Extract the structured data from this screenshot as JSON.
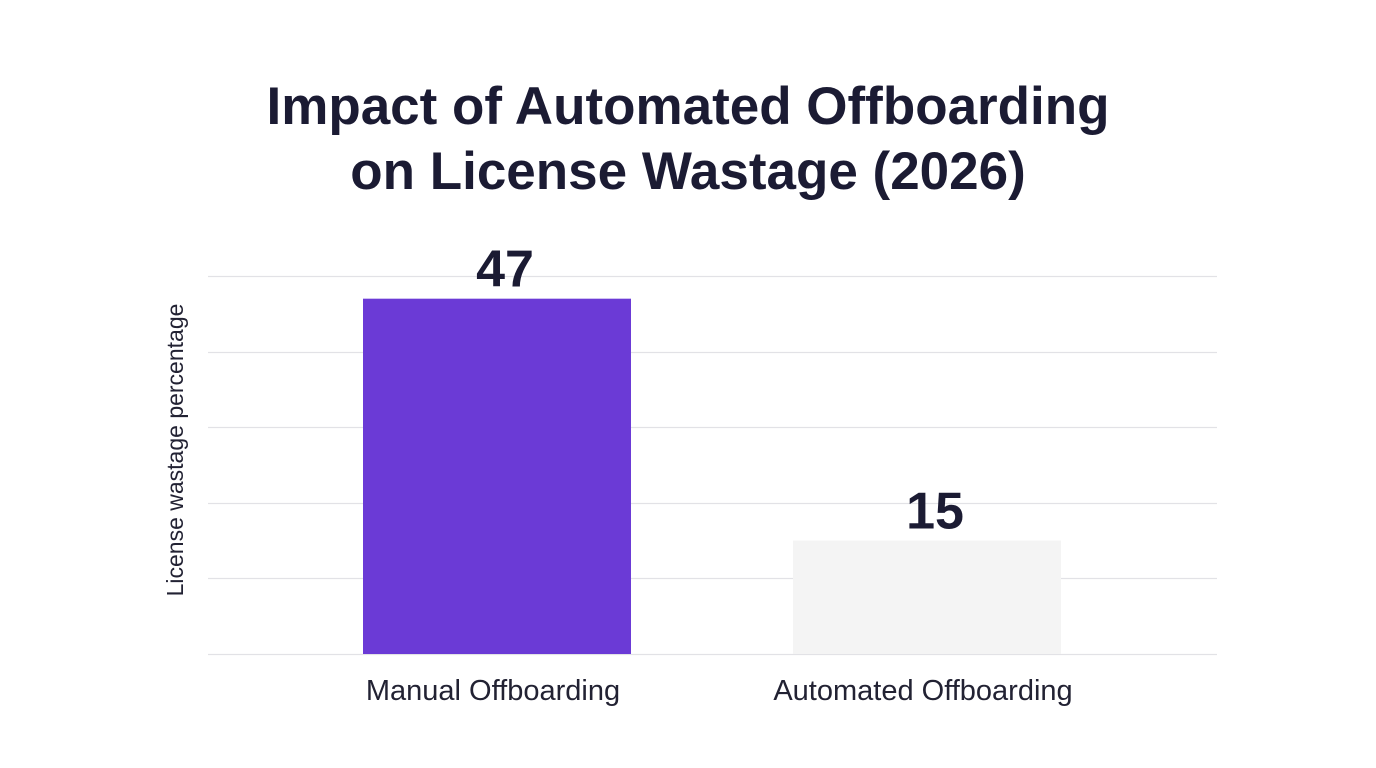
{
  "chart_data": {
    "type": "bar",
    "title_lines": [
      "Impact of Automated Offboarding",
      "on License Wastage (2026)"
    ],
    "categories": [
      "Manual Offboarding",
      "Automated Offboarding"
    ],
    "values": [
      47,
      15
    ],
    "bar_colors": [
      "#6b3ad6",
      "#f4f4f4"
    ],
    "ylabel": "License wastage percentage",
    "xlabel": "",
    "ylim": [
      0,
      50
    ],
    "ytick_step": 10,
    "show_ytick_labels": false,
    "grid": true,
    "gridline_color": "#e2e2e6",
    "text_color": "#1b1b33",
    "label_color": "#222233"
  }
}
